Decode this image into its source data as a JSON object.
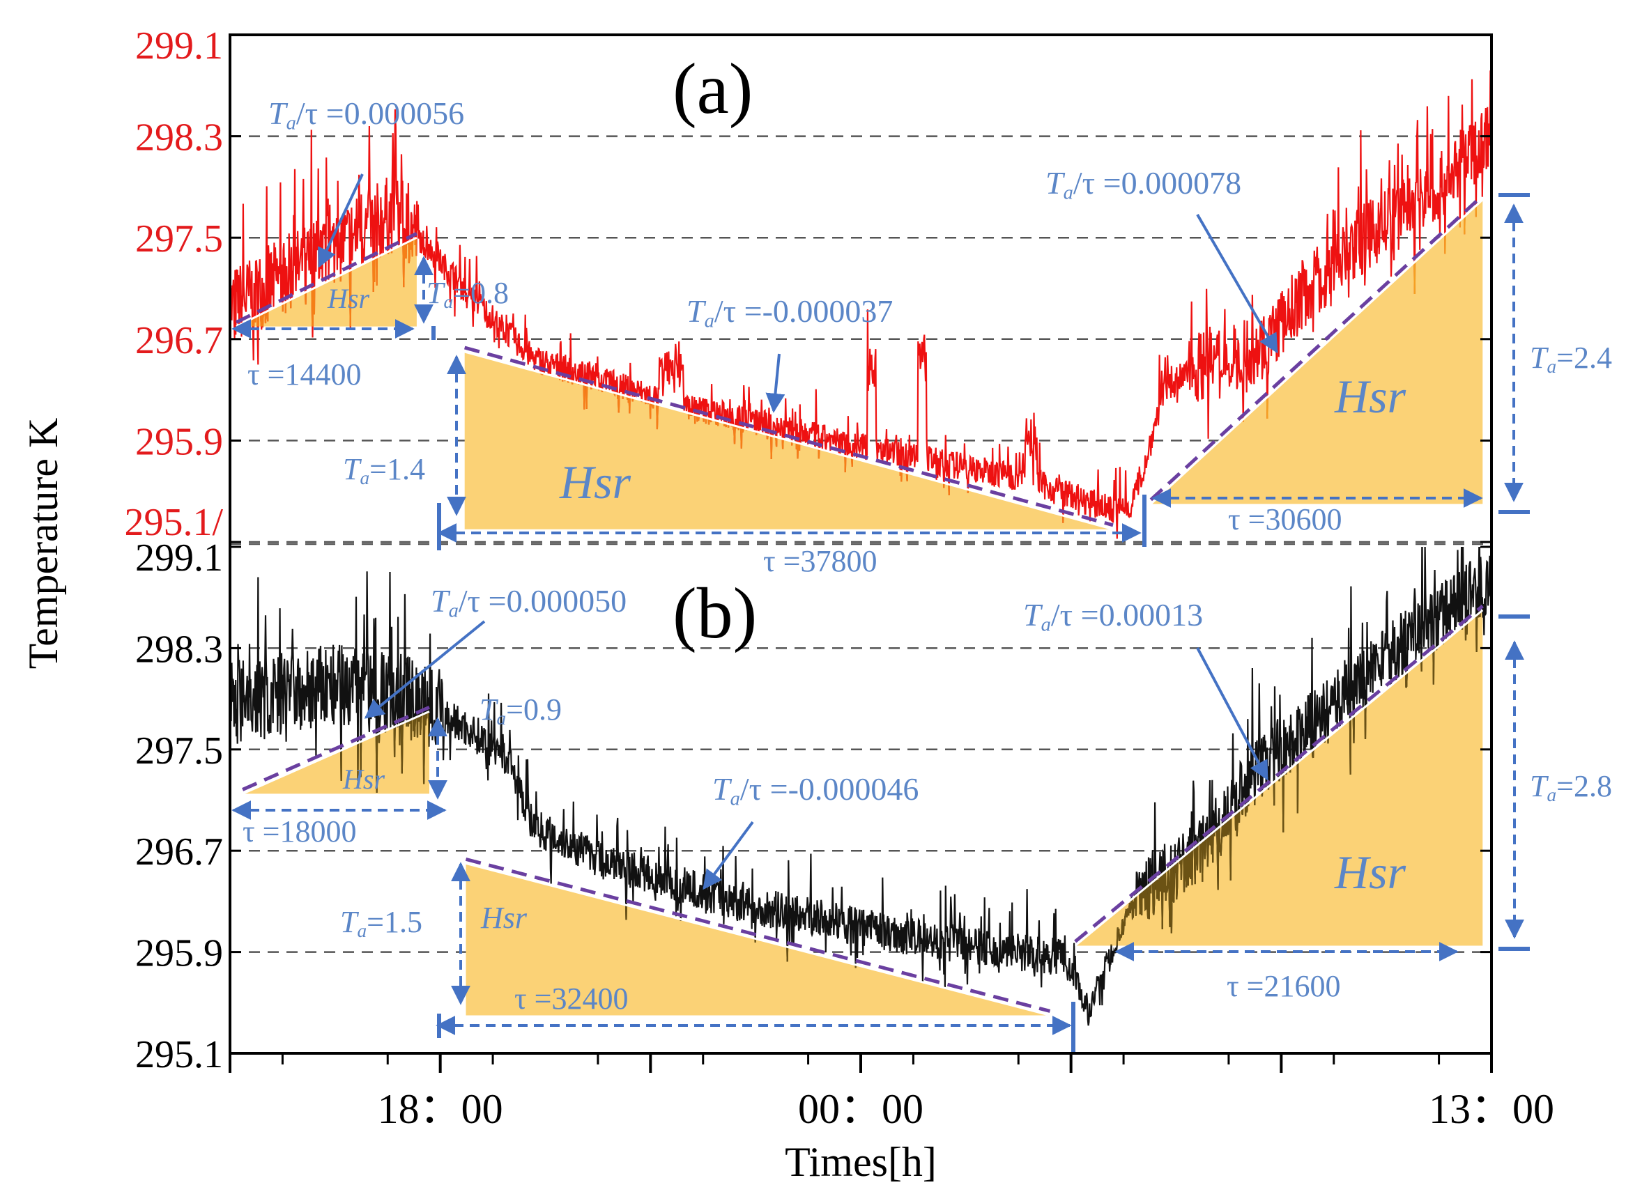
{
  "chart_data": {
    "type": "line",
    "title": "",
    "xlabel": "Times[h]",
    "ylabel": "Temperature K",
    "x_ticks": [
      "18：00",
      "00：00",
      "13：00"
    ],
    "panels": [
      {
        "label": "(a)",
        "series_color": "#ee1111",
        "tick_color": "#e31a1c",
        "y_ticks": [
          "299.1",
          "298.3",
          "297.5",
          "296.7",
          "295.9",
          "295.1/"
        ],
        "ylim": [
          295.1,
          299.1
        ],
        "annotations": [
          {
            "text": "Ta/τ =0.000056"
          },
          {
            "text": "Ta=0.8"
          },
          {
            "text": "τ =14400"
          },
          {
            "text": "Ta/τ =-0.000037"
          },
          {
            "text": "Ta=1.4"
          },
          {
            "text": "τ =37800"
          },
          {
            "text": "Ta/τ =0.000078"
          },
          {
            "text": "Ta=2.4"
          },
          {
            "text": "τ =30600"
          }
        ],
        "hsr_labels": [
          "Hsr",
          "Hsr",
          "Hsr"
        ]
      },
      {
        "label": "(b)",
        "series_color": "#000000",
        "tick_color": "#000000",
        "y_ticks": [
          "299.1",
          "298.3",
          "297.5",
          "296.7",
          "295.9",
          "295.1"
        ],
        "ylim": [
          295.1,
          299.1
        ],
        "annotations": [
          {
            "text": "Ta/τ =0.000050"
          },
          {
            "text": "Ta=0.9"
          },
          {
            "text": "τ =18000"
          },
          {
            "text": "Ta/τ =-0.000046"
          },
          {
            "text": "Ta=1.5"
          },
          {
            "text": "τ =32400"
          },
          {
            "text": "Ta/τ =0.00013"
          },
          {
            "text": "Ta=2.8"
          },
          {
            "text": "τ =21600"
          }
        ],
        "hsr_labels": [
          "Hsr",
          "Hsr",
          "Hsr"
        ]
      }
    ]
  }
}
